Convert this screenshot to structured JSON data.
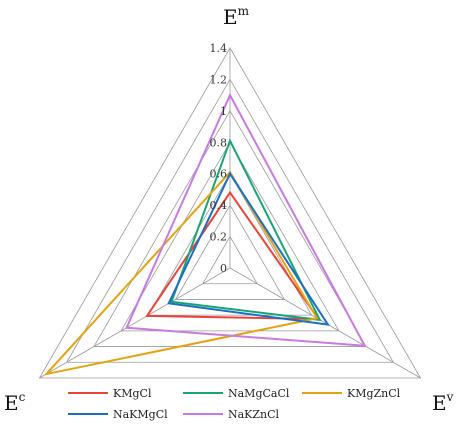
{
  "chart_data": {
    "type": "radar",
    "axes": [
      {
        "base": "E",
        "sup": "m"
      },
      {
        "base": "E",
        "sup": "v"
      },
      {
        "base": "E",
        "sup": "c"
      }
    ],
    "rmax": 1.4,
    "ticks": [
      0,
      0.2,
      0.4,
      0.6,
      0.8,
      1,
      1.2,
      1.4
    ],
    "tick_labels": [
      "0",
      "0.2",
      "0.4",
      "0.6",
      "0.8",
      "1",
      "1.2",
      "1.4"
    ],
    "grid": true,
    "legend_position": "bottom",
    "series": [
      {
        "name": "KMgCl",
        "color": "#e8443a",
        "values": [
          0.48,
          0.65,
          0.61
        ]
      },
      {
        "name": "NaMgCaCl",
        "color": "#1aa472",
        "values": [
          0.81,
          0.66,
          0.43
        ]
      },
      {
        "name": "KMgZnCl",
        "color": "#e2a413",
        "values": [
          0.61,
          0.64,
          1.35
        ]
      },
      {
        "name": "NaKMgCl",
        "color": "#1c6fc2",
        "values": [
          0.6,
          0.72,
          0.45
        ]
      },
      {
        "name": "NaKZnCl",
        "color": "#c77be0",
        "values": [
          1.1,
          0.99,
          0.76
        ]
      }
    ]
  }
}
